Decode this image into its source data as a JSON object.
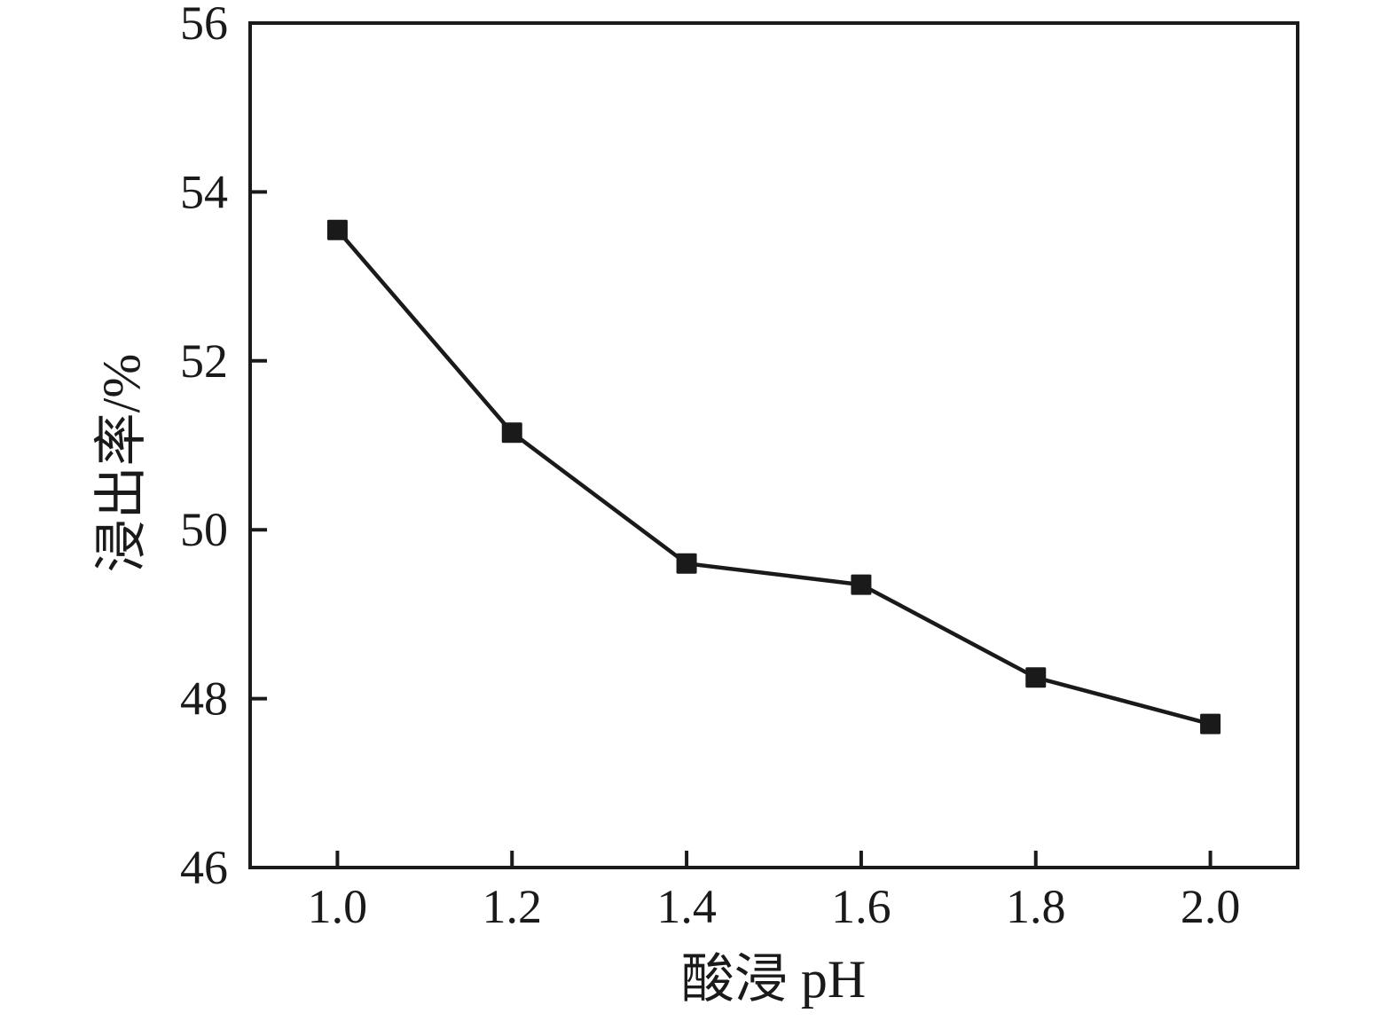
{
  "chart_data": {
    "type": "line",
    "xlabel": "酸浸 pH",
    "ylabel": "浸出率/%",
    "x": [
      1.0,
      1.2,
      1.4,
      1.6,
      1.8,
      2.0
    ],
    "series": [
      {
        "name": "浸出率",
        "values": [
          53.55,
          51.15,
          49.6,
          49.35,
          48.25,
          47.7
        ]
      }
    ],
    "xlim": [
      0.9,
      2.1
    ],
    "ylim": [
      46,
      56
    ],
    "x_ticks": [
      "1.0",
      "1.2",
      "1.4",
      "1.6",
      "1.8",
      "2.0"
    ],
    "x_tick_values": [
      1.0,
      1.2,
      1.4,
      1.6,
      1.8,
      2.0
    ],
    "y_ticks": [
      "46",
      "48",
      "50",
      "52",
      "54",
      "56"
    ],
    "y_tick_values": [
      46,
      48,
      50,
      52,
      54,
      56
    ],
    "grid": false,
    "legend_position": "none",
    "marker": "square",
    "line_color": "#1a1a1a",
    "background_color": "#ffffff"
  }
}
